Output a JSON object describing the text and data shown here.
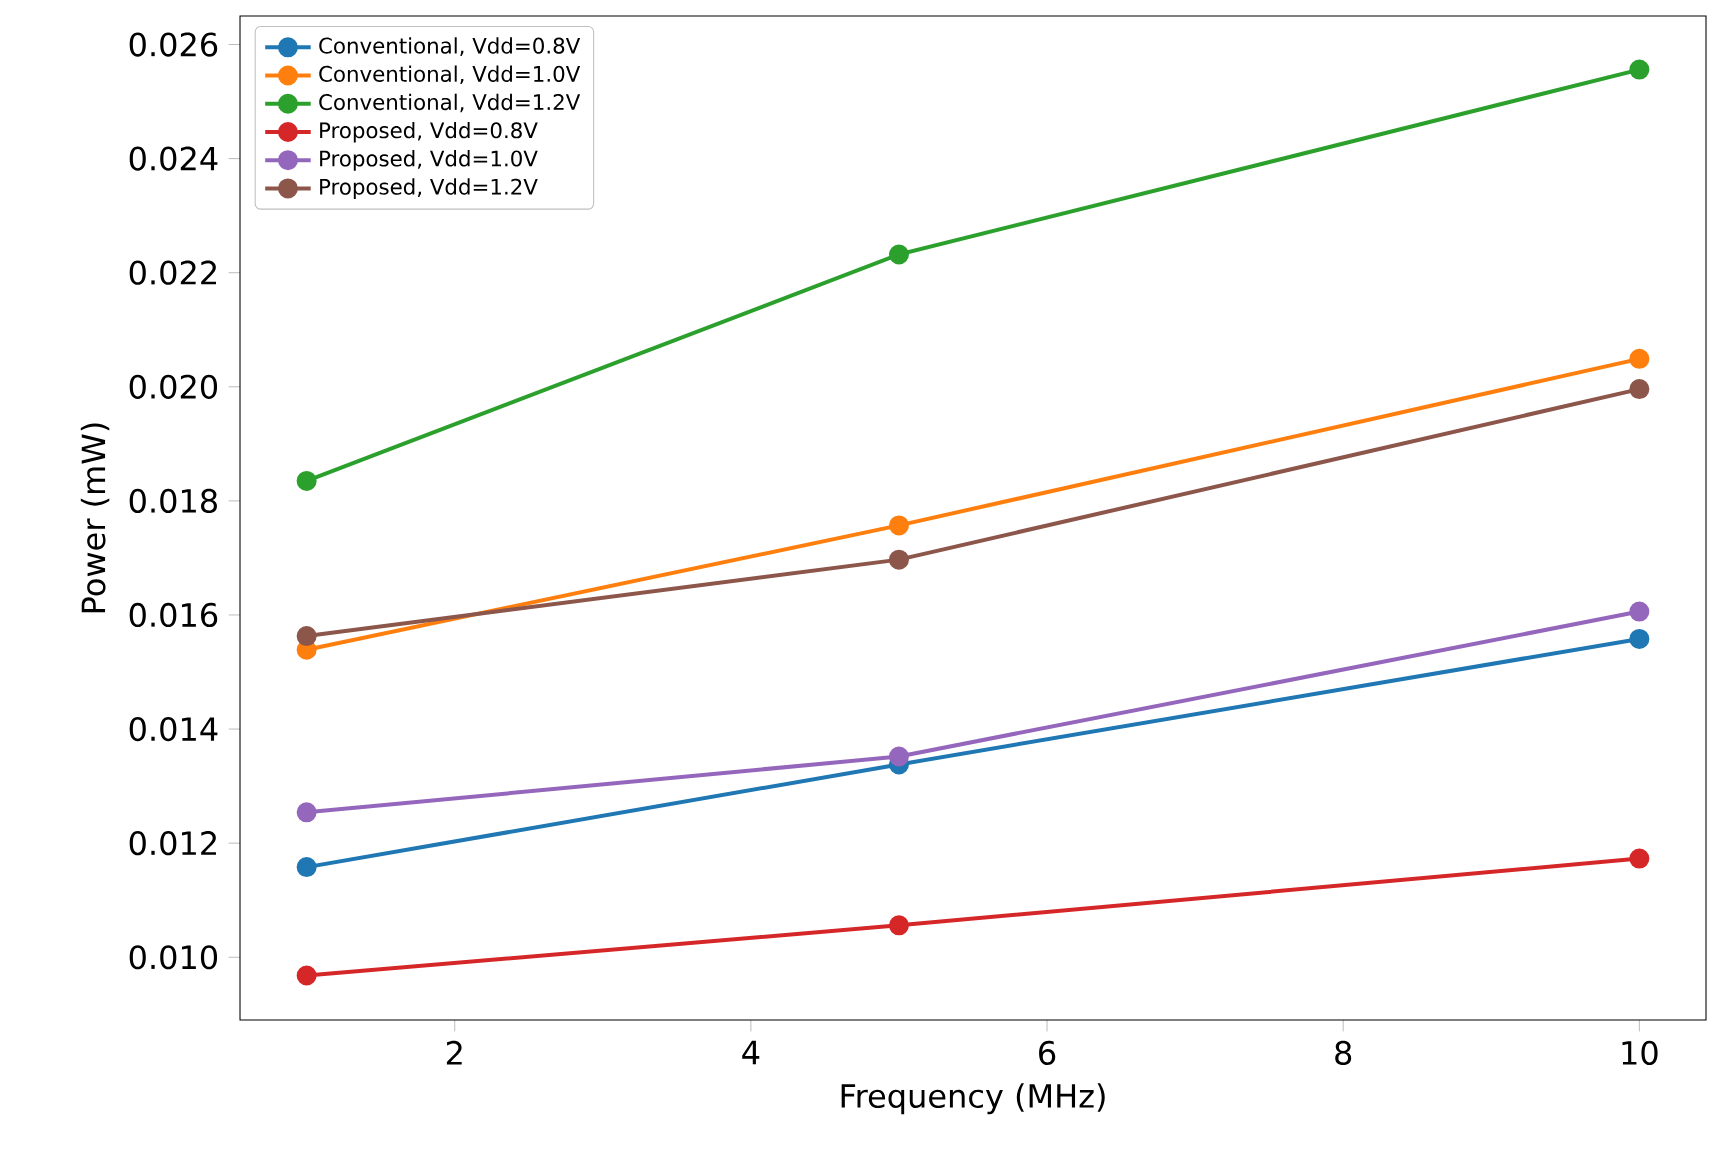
{
  "chart_data": {
    "type": "line",
    "xlabel": "Frequency (MHz)",
    "ylabel": "Power (mW)",
    "x": [
      1,
      5,
      10
    ],
    "series": [
      {
        "name": "Conventional, Vdd=0.8V",
        "color": "#1f77b4",
        "values": [
          0.01158,
          0.01338,
          0.01558
        ]
      },
      {
        "name": "Conventional, Vdd=1.0V",
        "color": "#ff7f0e",
        "values": [
          0.01539,
          0.01757,
          0.02049
        ]
      },
      {
        "name": "Conventional, Vdd=1.2V",
        "color": "#2ca02c",
        "values": [
          0.01835,
          0.02232,
          0.02556
        ]
      },
      {
        "name": "Proposed, Vdd=0.8V",
        "color": "#d62728",
        "values": [
          0.00968,
          0.01056,
          0.01173
        ]
      },
      {
        "name": "Proposed, Vdd=1.0V",
        "color": "#9467bd",
        "values": [
          0.01254,
          0.01352,
          0.01606
        ]
      },
      {
        "name": "Proposed, Vdd=1.2V",
        "color": "#8c564b",
        "values": [
          0.01563,
          0.01697,
          0.01996
        ]
      }
    ],
    "xlim": [
      0.55,
      10.45
    ],
    "ylim": [
      0.0089,
      0.0265
    ],
    "xticks": [
      2,
      4,
      6,
      8,
      10
    ],
    "yticks": [
      {
        "value": 0.01,
        "label": "0.010"
      },
      {
        "value": 0.012,
        "label": "0.012"
      },
      {
        "value": 0.014,
        "label": "0.014"
      },
      {
        "value": 0.016,
        "label": "0.016"
      },
      {
        "value": 0.018,
        "label": "0.018"
      },
      {
        "value": 0.02,
        "label": "0.020"
      },
      {
        "value": 0.022,
        "label": "0.022"
      },
      {
        "value": 0.024,
        "label": "0.024"
      },
      {
        "value": 0.026,
        "label": "0.026"
      }
    ],
    "legend": "top left",
    "marker": "circle",
    "line_style": "solid",
    "grid": false
  }
}
